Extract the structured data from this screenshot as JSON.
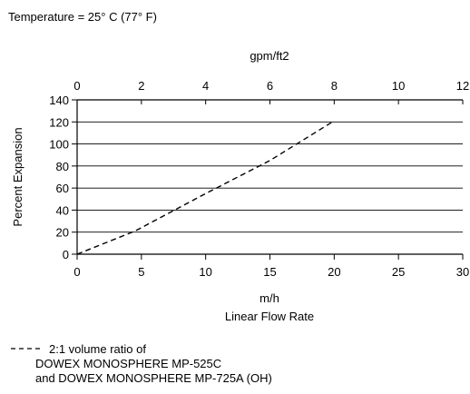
{
  "header_note": "Temperature = 25° C (77° F)",
  "chart_data": {
    "type": "line",
    "title": "",
    "x": [
      0,
      4.5,
      10,
      15,
      20
    ],
    "series": [
      {
        "name": "2:1 volume ratio of DOWEX MONOSPHERE MP-525C and DOWEX MONOSPHERE MP-725A (OH)",
        "values": [
          0,
          21,
          55,
          85,
          121
        ],
        "style": "dashed",
        "color": "#000000"
      }
    ],
    "xlabel_unit": "m/h",
    "xlabel": "Linear Flow Rate",
    "xlim": [
      0,
      30
    ],
    "xticks": [
      0,
      5,
      10,
      15,
      20,
      25,
      30
    ],
    "x2label": "gpm/ft2",
    "x2lim": [
      0,
      12
    ],
    "x2ticks": [
      0,
      2,
      4,
      6,
      8,
      10,
      12
    ],
    "ylabel": "Percent Expansion",
    "ylim": [
      0,
      140
    ],
    "yticks": [
      0,
      20,
      40,
      60,
      80,
      100,
      120,
      140
    ],
    "grid": "horizontal",
    "legend": {
      "position": "bottom-left",
      "lines": [
        "2:1 volume ratio of",
        "DOWEX MONOSPHERE MP-525C",
        "and DOWEX MONOSPHERE MP-725A (OH)"
      ]
    }
  }
}
